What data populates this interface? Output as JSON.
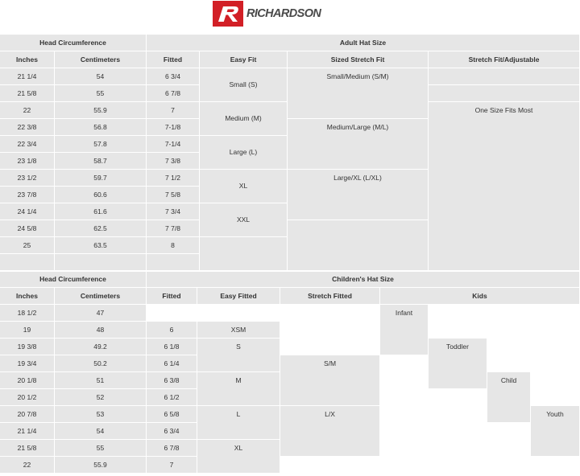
{
  "logo": {
    "brand": "RICHARDSON",
    "badge_letter": "R",
    "badge_color": "#d21f26"
  },
  "colors": {
    "cell_bg": "#e6e6e6",
    "text": "#333333",
    "background": "#ffffff"
  },
  "adult": {
    "head_header": "Head Circumference",
    "size_header": "Adult Hat Size",
    "columns": [
      "Inches",
      "Centimeters",
      "Fitted",
      "Easy Fit",
      "Sized Stretch Fit",
      "Stretch Fit/Adjustable"
    ],
    "inches": [
      "21 1/4",
      "21 5/8",
      "22",
      "22 3/8",
      "22 3/4",
      "23 1/8",
      "23 1/2",
      "23 7/8",
      "24 1/4",
      "24 5/8",
      "25"
    ],
    "centimeters": [
      "54",
      "55",
      "55.9",
      "56.8",
      "57.8",
      "58.7",
      "59.7",
      "60.6",
      "61.6",
      "62.5",
      "63.5"
    ],
    "fitted": [
      "6 3/4",
      "6 7/8",
      "7",
      "7-1/8",
      "7-1/4",
      "7 3/8",
      "7 1/2",
      "7 5/8",
      "7 3/4",
      "7 7/8",
      "8"
    ],
    "easy_fit": [
      "Small (S)",
      "Medium (M)",
      "Large (L)",
      "XL",
      "XXL"
    ],
    "sized_stretch": [
      "Small/Medium (S/M)",
      "Medium/Large (M/L)",
      "Large/XL (L/XL)"
    ],
    "adjustable": "One Size Fits Most"
  },
  "children": {
    "head_header": "Head Circumference",
    "size_header": "Children's Hat Size",
    "columns": [
      "Inches",
      "Centimeters",
      "Fitted",
      "Easy Fitted",
      "Stretch Fitted",
      "Kids"
    ],
    "inches": [
      "18 1/2",
      "19",
      "19 3/8",
      "19 3/4",
      "20 1/8",
      "20 1/2",
      "20 7/8",
      "21 1/4",
      "21 5/8",
      "22"
    ],
    "centimeters": [
      "47",
      "48",
      "49.2",
      "50.2",
      "51",
      "52",
      "53",
      "54",
      "55",
      "55.9"
    ],
    "fitted": [
      "6",
      "6 1/8",
      "6 1/4",
      "6 3/8",
      "6 1/2",
      "6 5/8",
      "6 3/4",
      "6 7/8",
      "7"
    ],
    "easy_fitted": [
      "XSM",
      "S",
      "M",
      "L",
      "XL"
    ],
    "stretch_fitted": [
      "S/M",
      "L/X"
    ],
    "kids": [
      "Infant",
      "Toddler",
      "Child",
      "Youth"
    ]
  }
}
